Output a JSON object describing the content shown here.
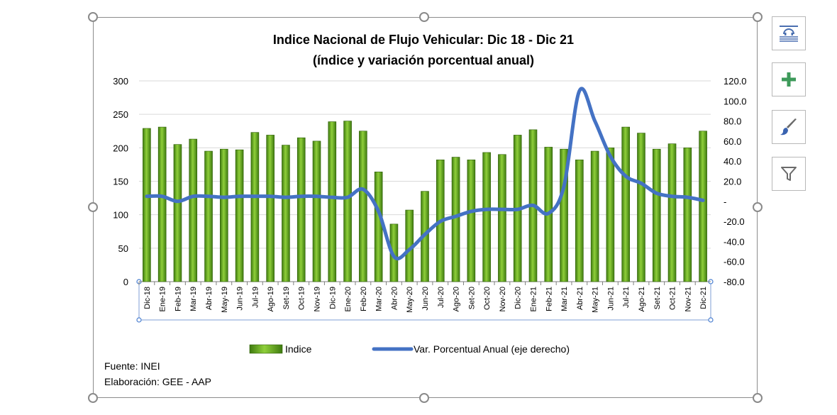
{
  "chart_data": {
    "type": "bar+line",
    "title": "Indice Nacional de Flujo Vehicular: Dic 18 - Dic 21",
    "subtitle": "(índice y variación porcentual anual)",
    "categories": [
      "Dic-18",
      "Ene-19",
      "Feb-19",
      "Mar-19",
      "Abr-19",
      "May-19",
      "Jun-19",
      "Jul-19",
      "Ago-19",
      "Set-19",
      "Oct-19",
      "Nov-19",
      "Dic-19",
      "Ene-20",
      "Feb-20",
      "Mar-20",
      "Abr-20",
      "May-20",
      "Jun-20",
      "Jul-20",
      "Ago-20",
      "Set-20",
      "Oct-20",
      "Nov-20",
      "Dic-20",
      "Ene-21",
      "Feb-21",
      "Mar-21",
      "Abr-21",
      "May-21",
      "Jun-21",
      "Jul-21",
      "Ago-21",
      "Set-21",
      "Oct-21",
      "Nov-21",
      "Dic-21"
    ],
    "series": [
      {
        "name": "Indice",
        "type": "bar",
        "axis": "left",
        "color": "#6aa81e",
        "values": [
          229,
          231,
          205,
          213,
          195,
          198,
          197,
          223,
          219,
          204,
          215,
          210,
          239,
          240,
          225,
          164,
          86,
          107,
          135,
          182,
          186,
          182,
          193,
          190,
          219,
          227,
          201,
          198,
          182,
          195,
          200,
          231,
          222,
          198,
          206,
          200,
          225
        ]
      },
      {
        "name": "Var. Porcentual Anual (eje derecho)",
        "type": "line",
        "axis": "right",
        "color": "#4472c4",
        "values": [
          5,
          5,
          0,
          5,
          5,
          4,
          5,
          5,
          5,
          4,
          5,
          5,
          4,
          4,
          12,
          -10,
          -55,
          -48,
          -33,
          -20,
          -15,
          -10,
          -8,
          -8,
          -8,
          -4,
          -12,
          15,
          110,
          80,
          45,
          25,
          18,
          8,
          5,
          4,
          1
        ]
      }
    ],
    "y_left": {
      "min": 0,
      "max": 300,
      "ticks": [
        "0",
        "50",
        "100",
        "150",
        "200",
        "250",
        "300"
      ]
    },
    "y_right": {
      "min": -80,
      "max": 120,
      "ticks": [
        "-80.0",
        "-60.0",
        "-40.0",
        "-20.0",
        "-",
        "20.0",
        "40.0",
        "60.0",
        "80.0",
        "100.0",
        "120.0"
      ]
    },
    "grid": true,
    "legend_position": "bottom"
  },
  "footer": {
    "source": "Fuente: INEI",
    "elaboration": "Elaboración: GEE - AAP"
  },
  "side_buttons": [
    {
      "icon": "chart-layout-icon"
    },
    {
      "icon": "plus-icon"
    },
    {
      "icon": "paintbrush-icon"
    },
    {
      "icon": "filter-icon"
    }
  ]
}
